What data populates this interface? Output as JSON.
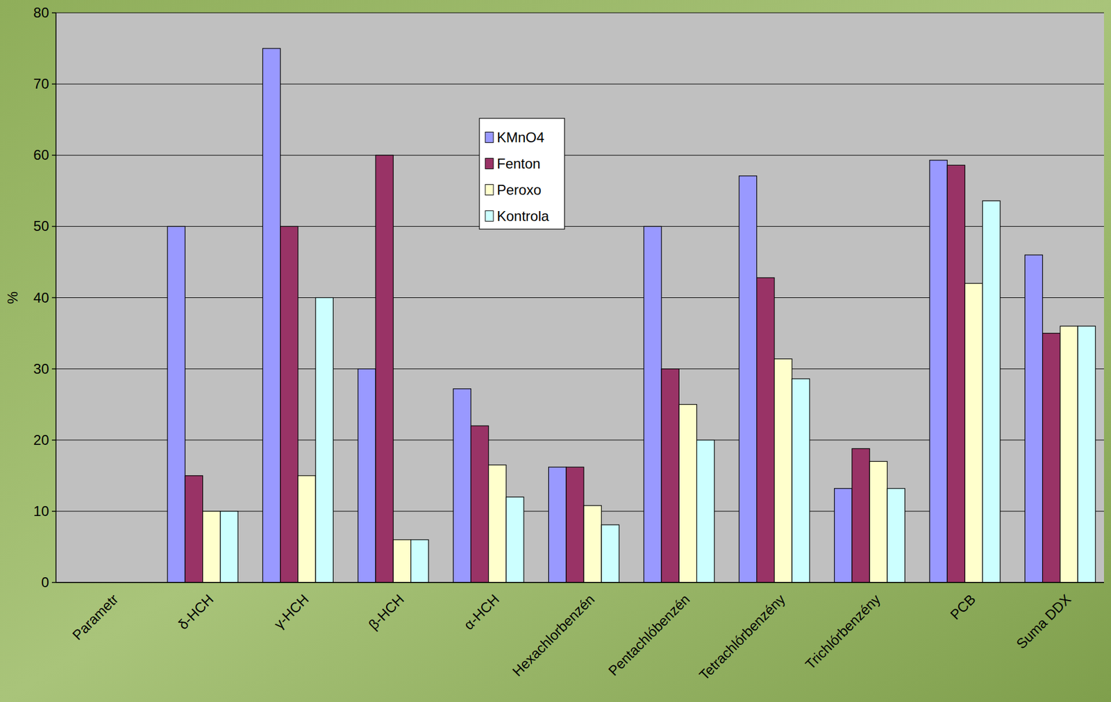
{
  "chart_data": {
    "type": "bar",
    "y_label": "%",
    "categories": [
      "Parametr",
      "δ-HCH",
      "γ-HCH",
      "β-HCH",
      "α-HCH",
      "Hexachlorbenzén",
      "Pentachlóbenzén",
      "Tetrachlórbenzény",
      "Trichlórbenzény",
      "PCB",
      "Suma DDX"
    ],
    "series": [
      {
        "name": "KMnO4",
        "color": "#9999ff",
        "values": [
          null,
          50,
          75,
          30,
          27.2,
          16.2,
          50,
          57.1,
          13.2,
          59.3,
          46
        ]
      },
      {
        "name": "Fenton",
        "color": "#993366",
        "values": [
          null,
          15,
          50,
          60,
          22,
          16.2,
          30,
          42.8,
          18.8,
          58.6,
          35
        ]
      },
      {
        "name": "Peroxo",
        "color": "#ffffcc",
        "values": [
          null,
          10,
          15,
          6,
          16.5,
          10.8,
          25,
          31.4,
          17,
          42,
          36
        ]
      },
      {
        "name": "Kontrola",
        "color": "#ccffff",
        "values": [
          null,
          10,
          40,
          6,
          12,
          8.1,
          20,
          28.6,
          13.2,
          53.6,
          36
        ]
      }
    ],
    "ylim": [
      0,
      80
    ],
    "yticks": [
      0,
      10,
      20,
      30,
      40,
      50,
      60,
      70,
      80
    ],
    "grid": true,
    "legend": "top"
  }
}
